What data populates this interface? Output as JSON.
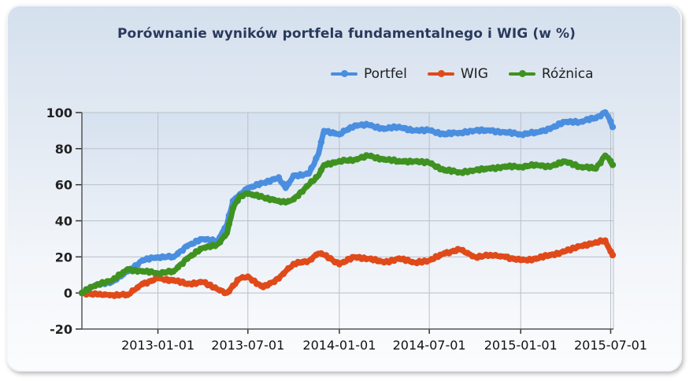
{
  "chart": {
    "title": "Porównanie wyników portfela fundamentalnego i WIG (w %)",
    "legend": [
      {
        "label": "Portfel",
        "color": "#4a8ee0"
      },
      {
        "label": "WIG",
        "color": "#e04a1a"
      },
      {
        "label": "Różnica",
        "color": "#3f9220"
      }
    ]
  },
  "chart_data": {
    "type": "line",
    "title": "Porównanie wyników portfela fundamentalnego i WIG (w %)",
    "xlabel": "",
    "ylabel": "",
    "ylim": [
      -20,
      100
    ],
    "yticks": [
      -20,
      0,
      20,
      40,
      60,
      80,
      100
    ],
    "xticks": [
      "2013-01-01",
      "2013-07-01",
      "2014-01-01",
      "2014-07-01",
      "2015-01-01",
      "2015-07-01"
    ],
    "grid": true,
    "legend_position": "top-right",
    "x": [
      "2012-08-01",
      "2012-09-01",
      "2012-10-01",
      "2012-11-01",
      "2012-12-01",
      "2013-01-01",
      "2013-02-01",
      "2013-03-01",
      "2013-04-01",
      "2013-05-01",
      "2013-05-20",
      "2013-06-01",
      "2013-06-15",
      "2013-07-01",
      "2013-08-01",
      "2013-09-01",
      "2013-09-15",
      "2013-10-01",
      "2013-11-01",
      "2013-11-20",
      "2013-12-01",
      "2014-01-01",
      "2014-02-01",
      "2014-03-01",
      "2014-04-01",
      "2014-05-01",
      "2014-06-01",
      "2014-07-01",
      "2014-08-01",
      "2014-09-01",
      "2014-10-01",
      "2014-11-01",
      "2014-12-01",
      "2015-01-01",
      "2015-02-01",
      "2015-03-01",
      "2015-04-01",
      "2015-05-01",
      "2015-06-01",
      "2015-06-20",
      "2015-07-01",
      "2015-07-05"
    ],
    "series": [
      {
        "name": "Portfel",
        "color": "#4a8ee0",
        "values": [
          0,
          5,
          6,
          12,
          18,
          20,
          20,
          26,
          30,
          29,
          38,
          51,
          55,
          58,
          61,
          64,
          58,
          65,
          66,
          77,
          90,
          88,
          93,
          93,
          91,
          92,
          90,
          90,
          88,
          89,
          90,
          90,
          89,
          88,
          89,
          91,
          95,
          95,
          97,
          100,
          95,
          92
        ]
      },
      {
        "name": "WIG",
        "color": "#e04a1a",
        "values": [
          0,
          -1,
          -1,
          -1,
          5,
          8,
          7,
          5,
          6,
          2,
          0,
          4,
          8,
          9,
          3,
          8,
          12,
          16,
          18,
          22,
          21,
          16,
          20,
          19,
          17,
          19,
          17,
          18,
          22,
          24,
          20,
          21,
          20,
          18,
          19,
          21,
          23,
          26,
          28,
          29,
          23,
          21
        ]
      },
      {
        "name": "Różnica",
        "color": "#3f9220",
        "values": [
          0,
          5,
          7,
          13,
          12,
          11,
          12,
          19,
          25,
          27,
          33,
          47,
          54,
          55,
          53,
          51,
          50,
          52,
          60,
          65,
          71,
          73,
          74,
          76,
          74,
          73,
          73,
          72,
          68,
          67,
          68,
          69,
          70,
          70,
          71,
          70,
          73,
          70,
          69,
          76,
          73,
          71
        ]
      }
    ]
  }
}
